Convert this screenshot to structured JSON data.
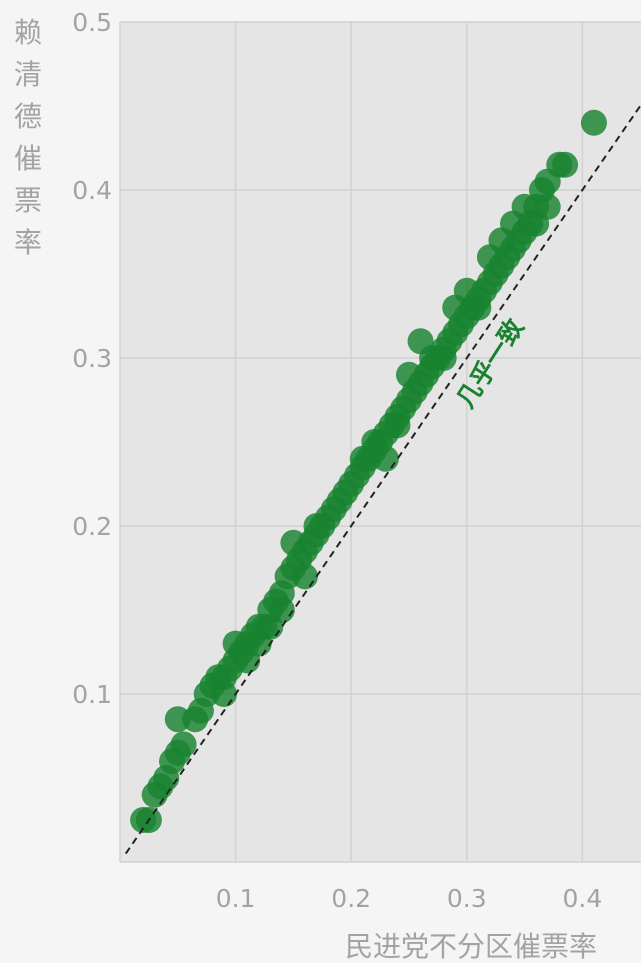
{
  "chart_data": {
    "type": "scatter",
    "xlabel": "民进党不分区催票率",
    "ylabel": "赖清德催票率",
    "xlim": [
      0,
      0.48
    ],
    "ylim": [
      0,
      0.5
    ],
    "x_ticks": [
      "0.1",
      "0.2",
      "0.3",
      "0.4"
    ],
    "y_ticks": [
      "0.1",
      "0.2",
      "0.3",
      "0.4",
      "0.5"
    ],
    "x_tick_values": [
      0.1,
      0.2,
      0.3,
      0.4
    ],
    "y_tick_values": [
      0.1,
      0.2,
      0.3,
      0.4,
      0.5
    ],
    "grid": true,
    "reference_line": {
      "type": "diagonal",
      "slope": 1,
      "style": "dashed",
      "color": "#222222"
    },
    "annotation": {
      "text": "几乎一致",
      "color": "#178230"
    },
    "point_color": "#178230",
    "points": [
      [
        0.02,
        0.025
      ],
      [
        0.025,
        0.025
      ],
      [
        0.03,
        0.04
      ],
      [
        0.035,
        0.045
      ],
      [
        0.04,
        0.05
      ],
      [
        0.045,
        0.06
      ],
      [
        0.05,
        0.065
      ],
      [
        0.055,
        0.07
      ],
      [
        0.05,
        0.085
      ],
      [
        0.065,
        0.085
      ],
      [
        0.07,
        0.09
      ],
      [
        0.075,
        0.1
      ],
      [
        0.08,
        0.105
      ],
      [
        0.085,
        0.11
      ],
      [
        0.09,
        0.1
      ],
      [
        0.095,
        0.115
      ],
      [
        0.1,
        0.12
      ],
      [
        0.105,
        0.125
      ],
      [
        0.11,
        0.13
      ],
      [
        0.115,
        0.135
      ],
      [
        0.12,
        0.14
      ],
      [
        0.125,
        0.14
      ],
      [
        0.13,
        0.15
      ],
      [
        0.135,
        0.155
      ],
      [
        0.14,
        0.16
      ],
      [
        0.145,
        0.17
      ],
      [
        0.15,
        0.175
      ],
      [
        0.155,
        0.18
      ],
      [
        0.16,
        0.185
      ],
      [
        0.165,
        0.19
      ],
      [
        0.17,
        0.195
      ],
      [
        0.175,
        0.2
      ],
      [
        0.18,
        0.205
      ],
      [
        0.185,
        0.21
      ],
      [
        0.19,
        0.215
      ],
      [
        0.195,
        0.22
      ],
      [
        0.2,
        0.225
      ],
      [
        0.205,
        0.23
      ],
      [
        0.21,
        0.235
      ],
      [
        0.215,
        0.24
      ],
      [
        0.22,
        0.245
      ],
      [
        0.225,
        0.25
      ],
      [
        0.23,
        0.255
      ],
      [
        0.235,
        0.26
      ],
      [
        0.24,
        0.265
      ],
      [
        0.245,
        0.27
      ],
      [
        0.25,
        0.275
      ],
      [
        0.255,
        0.28
      ],
      [
        0.26,
        0.285
      ],
      [
        0.265,
        0.29
      ],
      [
        0.27,
        0.295
      ],
      [
        0.275,
        0.3
      ],
      [
        0.28,
        0.305
      ],
      [
        0.285,
        0.31
      ],
      [
        0.29,
        0.315
      ],
      [
        0.295,
        0.32
      ],
      [
        0.3,
        0.325
      ],
      [
        0.305,
        0.33
      ],
      [
        0.31,
        0.335
      ],
      [
        0.315,
        0.34
      ],
      [
        0.32,
        0.345
      ],
      [
        0.325,
        0.35
      ],
      [
        0.33,
        0.355
      ],
      [
        0.335,
        0.36
      ],
      [
        0.34,
        0.365
      ],
      [
        0.345,
        0.37
      ],
      [
        0.35,
        0.375
      ],
      [
        0.355,
        0.38
      ],
      [
        0.36,
        0.39
      ],
      [
        0.365,
        0.4
      ],
      [
        0.37,
        0.405
      ],
      [
        0.38,
        0.415
      ],
      [
        0.385,
        0.415
      ],
      [
        0.41,
        0.44
      ],
      [
        0.21,
        0.24
      ],
      [
        0.22,
        0.25
      ],
      [
        0.23,
        0.24
      ],
      [
        0.24,
        0.26
      ],
      [
        0.25,
        0.29
      ],
      [
        0.26,
        0.31
      ],
      [
        0.27,
        0.3
      ],
      [
        0.28,
        0.3
      ],
      [
        0.29,
        0.33
      ],
      [
        0.3,
        0.34
      ],
      [
        0.31,
        0.33
      ],
      [
        0.32,
        0.36
      ],
      [
        0.33,
        0.37
      ],
      [
        0.34,
        0.38
      ],
      [
        0.35,
        0.39
      ],
      [
        0.36,
        0.38
      ],
      [
        0.37,
        0.39
      ],
      [
        0.15,
        0.19
      ],
      [
        0.16,
        0.17
      ],
      [
        0.17,
        0.2
      ],
      [
        0.12,
        0.13
      ],
      [
        0.13,
        0.14
      ],
      [
        0.14,
        0.15
      ],
      [
        0.09,
        0.11
      ],
      [
        0.1,
        0.13
      ],
      [
        0.11,
        0.12
      ]
    ]
  }
}
